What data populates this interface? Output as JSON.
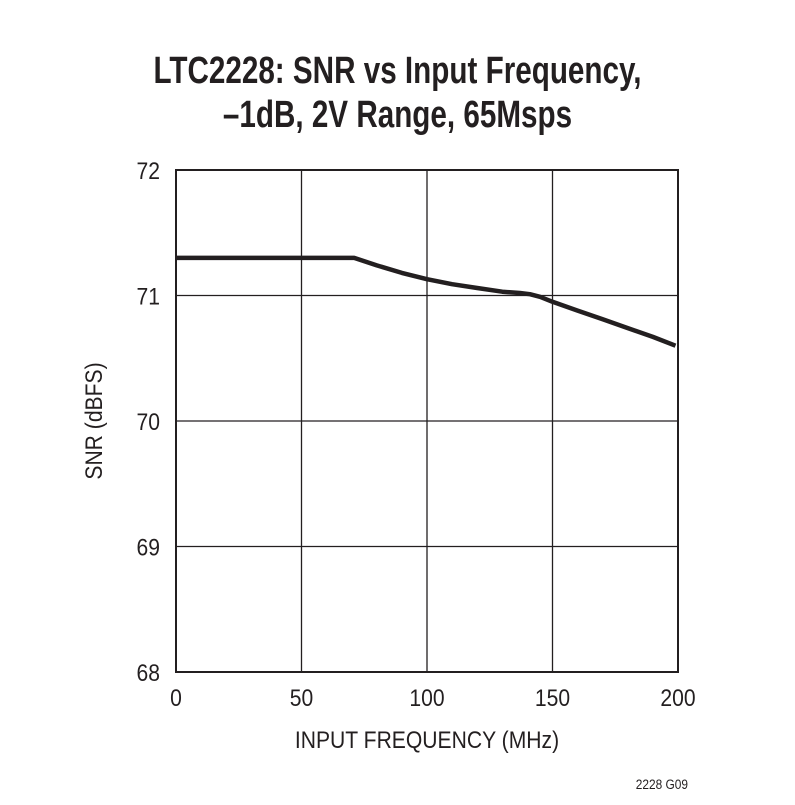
{
  "title": {
    "line1": "LTC2228: SNR vs Input Frequency,",
    "line2": "–1dB, 2V Range, 65Msps"
  },
  "axes": {
    "xlabel": "INPUT FREQUENCY (MHz)",
    "ylabel": "SNR (dBFS)",
    "xticks": [
      "0",
      "50",
      "100",
      "150",
      "200"
    ],
    "yticks": [
      "72",
      "71",
      "70",
      "69",
      "68"
    ]
  },
  "figure_code": "2228 G09",
  "colors": {
    "line": "#231f20",
    "grid": "#231f20",
    "background": "#ffffff"
  },
  "chart_data": {
    "type": "line",
    "title": "LTC2228: SNR vs Input Frequency, –1dB, 2V Range, 65Msps",
    "xlabel": "INPUT FREQUENCY (MHz)",
    "ylabel": "SNR (dBFS)",
    "xlim": [
      0,
      200
    ],
    "ylim": [
      68,
      72
    ],
    "xticks": [
      0,
      50,
      100,
      150,
      200
    ],
    "yticks": [
      68,
      69,
      70,
      71,
      72
    ],
    "grid": true,
    "legend": null,
    "series": [
      {
        "name": "SNR",
        "x": [
          0,
          10,
          30,
          50,
          70,
          71,
          80,
          90,
          100,
          110,
          120,
          130,
          137,
          141,
          145,
          150,
          160,
          170,
          180,
          190,
          199
        ],
        "y": [
          71.3,
          71.3,
          71.3,
          71.3,
          71.3,
          71.3,
          71.24,
          71.18,
          71.13,
          71.09,
          71.06,
          71.03,
          71.02,
          71.01,
          70.99,
          70.95,
          70.88,
          70.81,
          70.74,
          70.67,
          70.6
        ]
      }
    ]
  }
}
